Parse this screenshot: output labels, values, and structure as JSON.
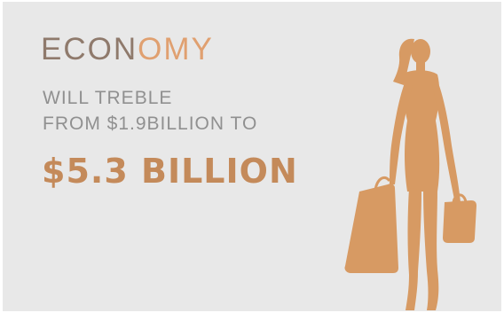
{
  "headline": {
    "part_a": "ECON",
    "part_b": "OMY"
  },
  "lines": [
    "WILL TREBLE",
    "FROM $1.9BILLION TO"
  ],
  "amount": "$5.3 BILLION",
  "colors": {
    "background": "#e8e8e8",
    "headline_a": "#8f7a6c",
    "headline_b": "#e0a070",
    "body_text": "#909090",
    "amount": "#c48a5a",
    "silhouette": "#d79a63"
  },
  "icons": {
    "figure": "shopping-woman-silhouette-icon"
  }
}
